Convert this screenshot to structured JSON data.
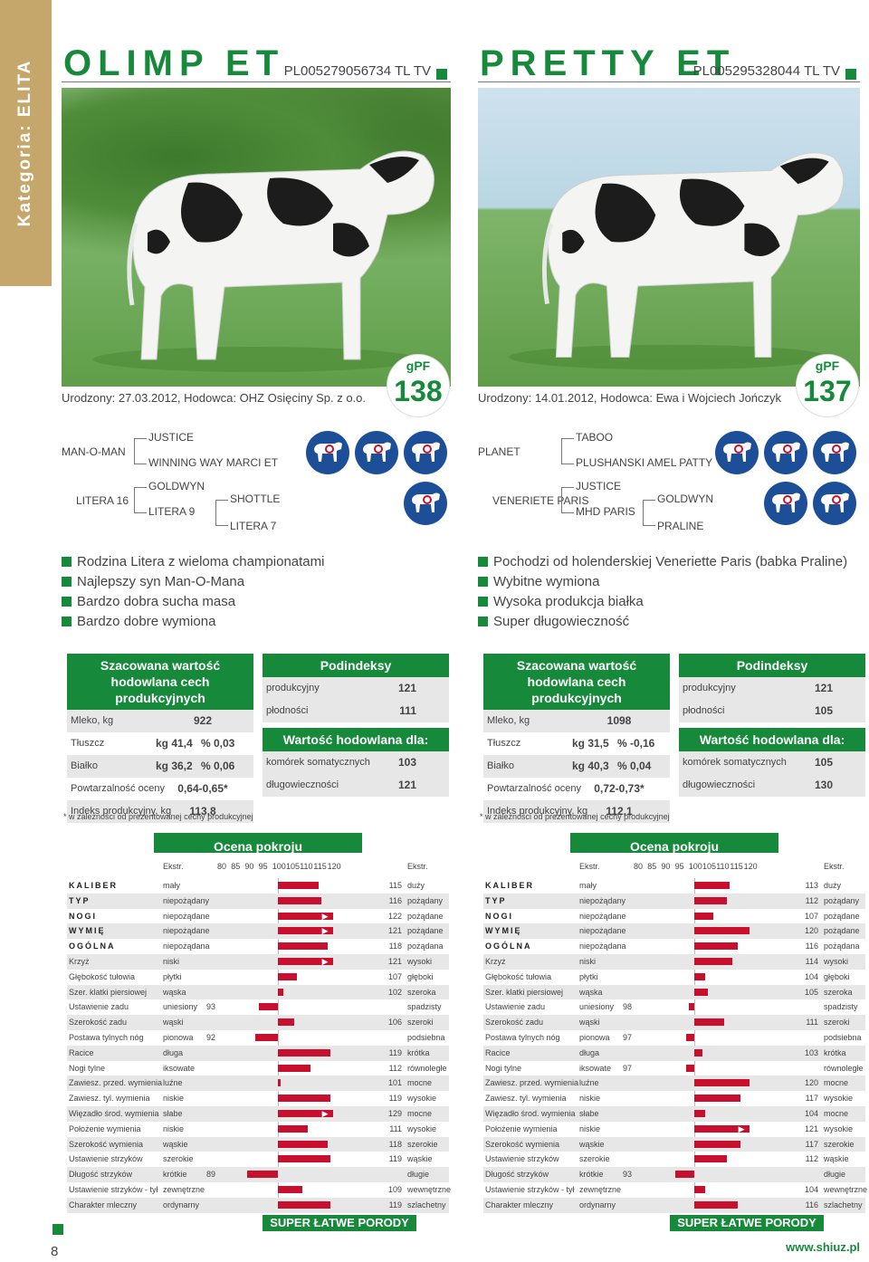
{
  "category": "Kategoria: ELITA",
  "page_number": "8",
  "website": "www.shiuz.pl",
  "gpf_label": "gPF",
  "accent_color": "#168a3a",
  "bar_color": "#c8102e",
  "icon_color": "#1d4f99",
  "footnote": "* w zależności od prezentowanej cechy produkcyjnej",
  "est_title": "Szacowana wartość hodowlana cech produkcyjnych",
  "sub_title": "Podindeksy",
  "val_title": "Wartość hodowlana dla:",
  "ocena_title": "Ocena pokroju",
  "ekstr": "Ekstr.",
  "scale": [
    "80",
    "85",
    "90",
    "95",
    "100",
    "105",
    "110",
    "115",
    "120"
  ],
  "super": "SUPER ŁATWE PORODY",
  "labels": {
    "mleko": "Mleko, kg",
    "tluszcz": "Tłuszcz",
    "bialko": "Białko",
    "powt": "Powtarzalność oceny",
    "indeks": "Indeks produkcyjny, kg",
    "produkcyjny": "produkcyjny",
    "plodnosci": "płodności",
    "komorek": "komórek somatycznych",
    "dlugowiecznosci": "długowieczności"
  },
  "bulls": [
    {
      "name": "OLIMP ET",
      "code": "PL005279056734 TL TV",
      "gpf": "138",
      "born": "Urodzony: 27.03.2012, Hodowca: OHZ Osięciny Sp. z o.o.",
      "pedigree": {
        "sire": "MAN-O-MAN",
        "ss": "JUSTICE",
        "sd": "WINNING WAY MARCI ET",
        "dam": "LITERA 16",
        "ds": "GOLDWYN",
        "dd": "LITERA 9",
        "dds": "SHOTTLE",
        "ddd": "LITERA 7"
      },
      "icons_top": [
        "udder-target-icon",
        "cow-udder-icon",
        "cow-no-icon"
      ],
      "icons_bottom": [
        "cow-cells-icon"
      ],
      "bullets": [
        "Rodzina Litera z wieloma championatami",
        "Najlepszy syn Man-O-Mana",
        "Bardzo dobra sucha masa",
        "Bardzo dobre wymiona"
      ],
      "est": {
        "mleko": "922",
        "tluszcz_kg": "kg 41,4",
        "tluszcz_pct": "% 0,03",
        "bialko_kg": "kg 36,2",
        "bialko_pct": "% 0,06",
        "powt": "0,64-0,65*",
        "indeks": "113,8"
      },
      "sub": {
        "produkcyjny": "121",
        "plodnosci": "111",
        "komorek": "103",
        "dlugowiecznosci": "121"
      },
      "traits": [
        {
          "name": "KALIBER",
          "bold": true,
          "lo": "mały",
          "hi": "duży",
          "value": 115
        },
        {
          "name": "TYP",
          "bold": true,
          "lo": "niepożądany",
          "hi": "pożądany",
          "value": 116
        },
        {
          "name": "NOGI",
          "bold": true,
          "lo": "niepożądane",
          "hi": "pożądane",
          "value": 122
        },
        {
          "name": "WYMIĘ",
          "bold": true,
          "lo": "niepożądane",
          "hi": "pożądane",
          "value": 121
        },
        {
          "name": "OGÓLNA",
          "bold": true,
          "lo": "niepożądana",
          "hi": "pożądana",
          "value": 118
        },
        {
          "name": "Krzyż",
          "lo": "niski",
          "hi": "wysoki",
          "value": 121
        },
        {
          "name": "Głębokość tułowia",
          "lo": "płytki",
          "hi": "głęboki",
          "value": 107
        },
        {
          "name": "Szer. klatki piersiowej",
          "lo": "wąska",
          "hi": "szeroka",
          "value": 102
        },
        {
          "name": "Ustawienie zadu",
          "lo": "uniesiony",
          "hi": "spadzisty",
          "value": 93
        },
        {
          "name": "Szerokość zadu",
          "lo": "wąski",
          "hi": "szeroki",
          "value": 106
        },
        {
          "name": "Postawa tylnych nóg",
          "lo": "pionowa",
          "hi": "podsiebna",
          "value": 92
        },
        {
          "name": "Racice",
          "lo": "długa",
          "hi": "krótka",
          "value": 119
        },
        {
          "name": "Nogi tylne",
          "lo": "iksowate",
          "hi": "równoległe",
          "value": 112
        },
        {
          "name": "Zawiesz. przed. wymienia",
          "lo": "luźne",
          "hi": "mocne",
          "value": 101
        },
        {
          "name": "Zawiesz. tyl. wymienia",
          "lo": "niskie",
          "hi": "wysokie",
          "value": 119
        },
        {
          "name": "Więzadło środ. wymienia",
          "lo": "słabe",
          "hi": "mocne",
          "value": 129
        },
        {
          "name": "Położenie wymienia",
          "lo": "niskie",
          "hi": "wysokie",
          "value": 111
        },
        {
          "name": "Szerokość wymienia",
          "lo": "wąskie",
          "hi": "szerokie",
          "value": 118
        },
        {
          "name": "Ustawienie strzyków",
          "lo": "szerokie",
          "hi": "wąskie",
          "value": 119
        },
        {
          "name": "Długość strzyków",
          "lo": "krótkie",
          "hi": "długie",
          "value": 89
        },
        {
          "name": "Ustawienie strzyków - tył",
          "lo": "zewnętrzne",
          "hi": "wewnętrzne",
          "value": 109
        },
        {
          "name": "Charakter mleczny",
          "lo": "ordynarny",
          "hi": "szlachetny",
          "value": 119
        }
      ]
    },
    {
      "name": "PRETTY ET",
      "code": "PL005295328044 TL TV",
      "gpf": "137",
      "born": "Urodzony: 14.01.2012, Hodowca: Ewa i Wojciech Jończyk",
      "pedigree": {
        "sire": "PLANET",
        "ss": "TABOO",
        "sd": "PLUSHANSKI AMEL PATTY",
        "dam": "VENERIETE PARIS",
        "ds": "JUSTICE",
        "dd": "MHD PARIS",
        "dds": "GOLDWYN",
        "ddd": "PRALINE"
      },
      "icons_top": [
        "milk-bottle-icon",
        "udder-target-icon",
        "cow-udder-icon"
      ],
      "icons_bottom": [
        "cow-protein-icon",
        "cow-cells-icon"
      ],
      "bullets": [
        "Pochodzi od holenderskiej Veneriette Paris (babka Praline)",
        "Wybitne wymiona",
        "Wysoka produkcja białka",
        "Super długowieczność"
      ],
      "est": {
        "mleko": "1098",
        "tluszcz_kg": "kg 31,5",
        "tluszcz_pct": "% -0,16",
        "bialko_kg": "kg 40,3",
        "bialko_pct": "% 0,04",
        "powt": "0,72-0,73*",
        "indeks": "112,1"
      },
      "sub": {
        "produkcyjny": "121",
        "plodnosci": "105",
        "komorek": "105",
        "dlugowiecznosci": "130"
      },
      "traits": [
        {
          "name": "KALIBER",
          "bold": true,
          "lo": "mały",
          "hi": "duży",
          "value": 113
        },
        {
          "name": "TYP",
          "bold": true,
          "lo": "niepożądany",
          "hi": "pożądany",
          "value": 112
        },
        {
          "name": "NOGI",
          "bold": true,
          "lo": "niepożądane",
          "hi": "pożądane",
          "value": 107
        },
        {
          "name": "WYMIĘ",
          "bold": true,
          "lo": "niepożądane",
          "hi": "pożądane",
          "value": 120
        },
        {
          "name": "OGÓLNA",
          "bold": true,
          "lo": "niepożądana",
          "hi": "pożądana",
          "value": 116
        },
        {
          "name": "Krzyż",
          "lo": "niski",
          "hi": "wysoki",
          "value": 114
        },
        {
          "name": "Głębokość tułowia",
          "lo": "płytki",
          "hi": "głęboki",
          "value": 104
        },
        {
          "name": "Szer. klatki piersiowej",
          "lo": "wąska",
          "hi": "szeroka",
          "value": 105
        },
        {
          "name": "Ustawienie zadu",
          "lo": "uniesiony",
          "hi": "spadzisty",
          "value": 98
        },
        {
          "name": "Szerokość zadu",
          "lo": "wąski",
          "hi": "szeroki",
          "value": 111
        },
        {
          "name": "Postawa tylnych nóg",
          "lo": "pionowa",
          "hi": "podsiebna",
          "value": 97
        },
        {
          "name": "Racice",
          "lo": "długa",
          "hi": "krótka",
          "value": 103
        },
        {
          "name": "Nogi tylne",
          "lo": "iksowate",
          "hi": "równoległe",
          "value": 97
        },
        {
          "name": "Zawiesz. przed. wymienia",
          "lo": "luźne",
          "hi": "mocne",
          "value": 120
        },
        {
          "name": "Zawiesz. tyl. wymienia",
          "lo": "niskie",
          "hi": "wysokie",
          "value": 117
        },
        {
          "name": "Więzadło środ. wymienia",
          "lo": "słabe",
          "hi": "mocne",
          "value": 104
        },
        {
          "name": "Położenie wymienia",
          "lo": "niskie",
          "hi": "wysokie",
          "value": 121
        },
        {
          "name": "Szerokość wymienia",
          "lo": "wąskie",
          "hi": "szerokie",
          "value": 117
        },
        {
          "name": "Ustawienie strzyków",
          "lo": "szerokie",
          "hi": "wąskie",
          "value": 112
        },
        {
          "name": "Długość strzyków",
          "lo": "krótkie",
          "hi": "długie",
          "value": 93
        },
        {
          "name": "Ustawienie strzyków - tył",
          "lo": "zewnętrzne",
          "hi": "wewnętrzne",
          "value": 104
        },
        {
          "name": "Charakter mleczny",
          "lo": "ordynarny",
          "hi": "szlachetny",
          "value": 116
        }
      ]
    }
  ]
}
